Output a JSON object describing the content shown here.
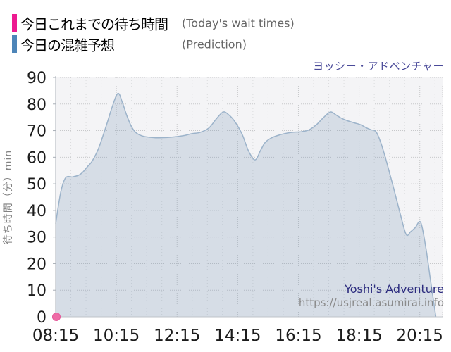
{
  "legend": {
    "items": [
      {
        "label_jp": "今日これまでの待ち時間",
        "label_en": "(Today's wait times)",
        "color": "#ed1a90"
      },
      {
        "label_jp": "今日の混雑予想",
        "label_en": "(Prediction)",
        "color": "#4d85b8"
      }
    ]
  },
  "title": "ヨッシー・アドベンチャー",
  "watermark": {
    "name": "Yoshi's Adventure",
    "url": "https://usjreal.asumirai.info"
  },
  "chart_data": {
    "type": "area",
    "title": "ヨッシー・アドベンチャー",
    "xlabel": "",
    "ylabel": "待ち時間（分）min",
    "x_range": [
      8.25,
      21.0
    ],
    "y_range": [
      0,
      90
    ],
    "x_ticks": [
      {
        "t": 8.25,
        "label": "08:15"
      },
      {
        "t": 10.25,
        "label": "10:15"
      },
      {
        "t": 12.25,
        "label": "12:15"
      },
      {
        "t": 14.25,
        "label": "14:15"
      },
      {
        "t": 16.25,
        "label": "16:15"
      },
      {
        "t": 18.25,
        "label": "18:15"
      },
      {
        "t": 20.25,
        "label": "20:15"
      }
    ],
    "y_ticks": [
      0,
      10,
      20,
      30,
      40,
      50,
      60,
      70,
      80,
      90
    ],
    "grid": {
      "major_x_hours": 2,
      "minor_x_hours": 0.5,
      "major_y": 10,
      "on": true
    },
    "legend_position": "top-left",
    "colors": {
      "plot_bg": "#f4f4f6",
      "grid_major": "#c7c8ca",
      "grid_minor": "#dbdcde",
      "axis": "#a9afb7",
      "baseline": "#bfc3c8",
      "area_fill": "#5d82aa",
      "area_fill_opacity": 0.2,
      "area_line": "#9cb3ca",
      "actual_dot": "#ee6ca6",
      "actual_dot_edge": "#e55a9a"
    },
    "series": [
      {
        "name": "今日これまでの待ち時間",
        "type": "scatter",
        "color": "#ee6ca6",
        "points": [
          [
            8.25,
            0
          ]
        ]
      },
      {
        "name": "今日の混雑予想",
        "type": "area",
        "color": "#4d85b8",
        "points": [
          [
            8.25,
            35
          ],
          [
            8.42,
            47
          ],
          [
            8.58,
            52.3
          ],
          [
            8.8,
            52.6
          ],
          [
            9.0,
            53.2
          ],
          [
            9.13,
            54.2
          ],
          [
            9.3,
            56.5
          ],
          [
            9.45,
            58.5
          ],
          [
            9.67,
            63.5
          ],
          [
            9.95,
            73
          ],
          [
            10.1,
            78.5
          ],
          [
            10.3,
            84
          ],
          [
            10.45,
            80.5
          ],
          [
            10.6,
            75.5
          ],
          [
            10.75,
            71.5
          ],
          [
            10.9,
            69.2
          ],
          [
            11.1,
            68
          ],
          [
            11.35,
            67.5
          ],
          [
            11.6,
            67.3
          ],
          [
            11.9,
            67.4
          ],
          [
            12.2,
            67.7
          ],
          [
            12.5,
            68.2
          ],
          [
            12.75,
            68.9
          ],
          [
            13.0,
            69.3
          ],
          [
            13.3,
            71
          ],
          [
            13.55,
            74.5
          ],
          [
            13.77,
            77
          ],
          [
            13.95,
            76
          ],
          [
            14.15,
            73.5
          ],
          [
            14.4,
            68.5
          ],
          [
            14.6,
            62.5
          ],
          [
            14.82,
            59
          ],
          [
            15.0,
            62.5
          ],
          [
            15.15,
            65.5
          ],
          [
            15.35,
            67.2
          ],
          [
            15.6,
            68.3
          ],
          [
            15.85,
            69
          ],
          [
            16.1,
            69.4
          ],
          [
            16.35,
            69.6
          ],
          [
            16.6,
            70.3
          ],
          [
            16.85,
            72.3
          ],
          [
            17.05,
            74.6
          ],
          [
            17.3,
            77
          ],
          [
            17.5,
            75.8
          ],
          [
            17.7,
            74.5
          ],
          [
            17.9,
            73.6
          ],
          [
            18.1,
            72.9
          ],
          [
            18.3,
            72.2
          ],
          [
            18.5,
            71
          ],
          [
            18.65,
            70.3
          ],
          [
            18.8,
            69.7
          ],
          [
            18.95,
            66
          ],
          [
            19.1,
            60.5
          ],
          [
            19.35,
            50
          ],
          [
            19.6,
            39
          ],
          [
            19.8,
            31
          ],
          [
            19.95,
            32
          ],
          [
            20.1,
            33.5
          ],
          [
            20.28,
            35.5
          ],
          [
            20.45,
            26
          ],
          [
            20.6,
            14
          ],
          [
            20.78,
            0
          ]
        ]
      }
    ]
  }
}
